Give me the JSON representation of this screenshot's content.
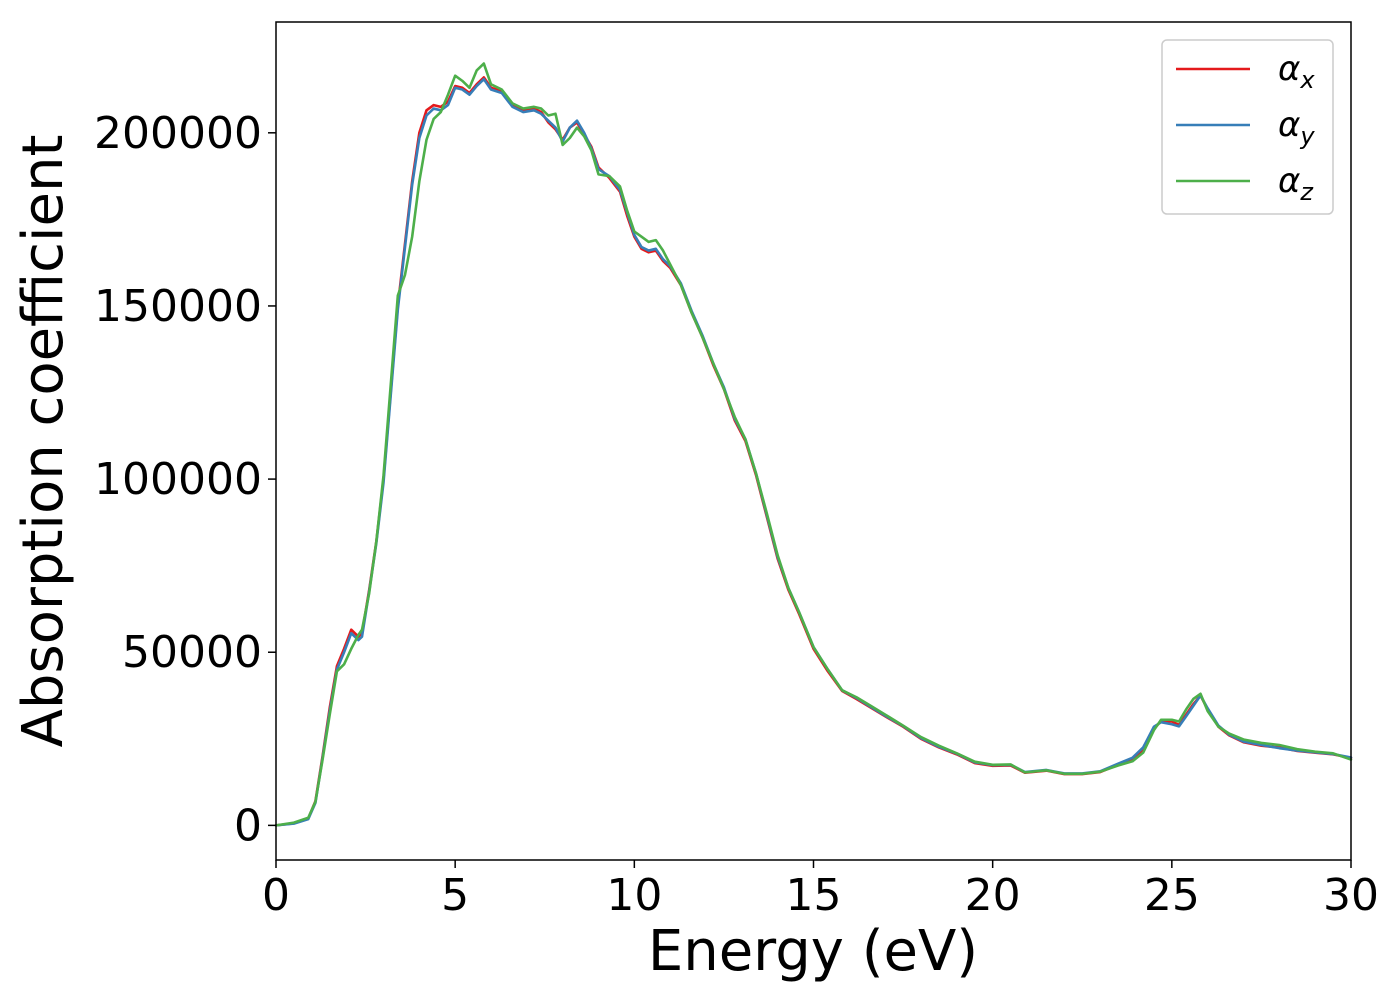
{
  "chart_data": {
    "type": "line",
    "title": "",
    "xlabel": "Energy (eV)",
    "ylabel": "Absorption coefficient",
    "xlim": [
      0,
      30
    ],
    "ylim": [
      -10000,
      232000
    ],
    "xticks": [
      0,
      5,
      10,
      15,
      20,
      25,
      30
    ],
    "xtick_labels": [
      "0",
      "5",
      "10",
      "15",
      "20",
      "25",
      "30"
    ],
    "yticks": [
      0,
      50000,
      100000,
      150000,
      200000
    ],
    "ytick_labels": [
      "0",
      "50000",
      "100000",
      "150000",
      "200000"
    ],
    "grid": false,
    "legend_position": "top-right",
    "series": [
      {
        "name": "αx",
        "name_base": "α",
        "name_sub": "x",
        "color": "#e41a1c",
        "x": [
          0,
          0.5,
          0.9,
          1.1,
          1.3,
          1.5,
          1.7,
          1.9,
          2.1,
          2.3,
          2.4,
          2.6,
          2.8,
          3.0,
          3.2,
          3.4,
          3.6,
          3.8,
          4.0,
          4.2,
          4.4,
          4.6,
          4.8,
          5.0,
          5.2,
          5.4,
          5.6,
          5.8,
          6.0,
          6.3,
          6.6,
          6.9,
          7.2,
          7.4,
          7.6,
          7.8,
          8.0,
          8.2,
          8.4,
          8.6,
          8.8,
          9.0,
          9.3,
          9.6,
          9.8,
          10.0,
          10.2,
          10.4,
          10.6,
          10.8,
          11.0,
          11.3,
          11.6,
          11.9,
          12.2,
          12.5,
          12.8,
          13.1,
          13.4,
          13.7,
          14.0,
          14.3,
          14.6,
          15.0,
          15.4,
          15.8,
          16.2,
          16.6,
          17.0,
          17.5,
          18.0,
          18.5,
          19.0,
          19.5,
          20.0,
          20.5,
          20.9,
          21.5,
          22.0,
          22.5,
          23.0,
          23.5,
          23.9,
          24.2,
          24.5,
          24.7,
          25.0,
          25.2,
          25.4,
          25.6,
          25.8,
          26.0,
          26.3,
          26.6,
          27.0,
          27.5,
          28.0,
          28.5,
          29.0,
          29.5,
          30.0
        ],
        "y": [
          0,
          600,
          2000,
          7000,
          20000,
          34000,
          46000,
          51000,
          56500,
          54500,
          55500,
          68000,
          82000,
          100000,
          125000,
          150000,
          168000,
          186000,
          200000,
          206500,
          208000,
          207500,
          209000,
          213500,
          213000,
          211500,
          214000,
          216000,
          213000,
          212000,
          208000,
          206500,
          207000,
          206000,
          203000,
          201000,
          198000,
          201500,
          203000,
          199500,
          196000,
          190000,
          187000,
          183000,
          176000,
          170000,
          166500,
          165500,
          166000,
          163000,
          161000,
          156000,
          148000,
          141000,
          133000,
          126000,
          117000,
          111000,
          101000,
          89000,
          77000,
          68000,
          61000,
          51000,
          44500,
          38800,
          36500,
          34000,
          31500,
          28500,
          25000,
          22500,
          20500,
          18000,
          17200,
          17300,
          15200,
          15800,
          14800,
          14800,
          15400,
          17500,
          19000,
          22000,
          28000,
          30000,
          30000,
          29000,
          32000,
          35000,
          37500,
          33500,
          28500,
          26000,
          24000,
          23000,
          22500,
          21500,
          21000,
          20500,
          19500
        ]
      },
      {
        "name": "αy",
        "name_base": "α",
        "name_sub": "y",
        "color": "#377eb8",
        "x": [
          0,
          0.5,
          0.9,
          1.1,
          1.3,
          1.5,
          1.7,
          1.9,
          2.1,
          2.3,
          2.4,
          2.6,
          2.8,
          3.0,
          3.2,
          3.4,
          3.6,
          3.8,
          4.0,
          4.2,
          4.4,
          4.6,
          4.8,
          5.0,
          5.2,
          5.4,
          5.6,
          5.8,
          6.0,
          6.3,
          6.6,
          6.9,
          7.2,
          7.4,
          7.6,
          7.8,
          8.0,
          8.2,
          8.4,
          8.6,
          8.8,
          9.0,
          9.3,
          9.6,
          9.8,
          10.0,
          10.2,
          10.4,
          10.6,
          10.8,
          11.0,
          11.3,
          11.6,
          11.9,
          12.2,
          12.5,
          12.8,
          13.1,
          13.4,
          13.7,
          14.0,
          14.3,
          14.6,
          15.0,
          15.4,
          15.8,
          16.2,
          16.6,
          17.0,
          17.5,
          18.0,
          18.5,
          19.0,
          19.5,
          20.0,
          20.5,
          20.9,
          21.5,
          22.0,
          22.5,
          23.0,
          23.5,
          23.9,
          24.2,
          24.5,
          24.7,
          25.0,
          25.2,
          25.4,
          25.6,
          25.8,
          26.0,
          26.3,
          26.6,
          27.0,
          27.5,
          28.0,
          28.5,
          29.0,
          29.5,
          30.0
        ],
        "y": [
          0,
          500,
          1800,
          6500,
          19500,
          33000,
          45000,
          50000,
          55500,
          53500,
          54500,
          67500,
          81500,
          99000,
          124000,
          149000,
          167000,
          185000,
          198500,
          205000,
          207000,
          206500,
          208000,
          213000,
          212500,
          211000,
          213500,
          215500,
          212500,
          211500,
          207500,
          206000,
          206500,
          205500,
          203500,
          201500,
          197500,
          201500,
          203500,
          200000,
          195500,
          189500,
          187500,
          183500,
          177000,
          170500,
          167000,
          166000,
          166500,
          163500,
          161500,
          156500,
          148500,
          141500,
          133500,
          126500,
          117500,
          111500,
          101500,
          89500,
          77500,
          68500,
          61500,
          51500,
          45000,
          39000,
          36800,
          34200,
          31700,
          28700,
          25200,
          22700,
          20700,
          18200,
          17400,
          17500,
          15400,
          16000,
          15000,
          15000,
          15600,
          17800,
          19500,
          22500,
          28500,
          29800,
          29200,
          28600,
          31500,
          34500,
          37500,
          33800,
          28800,
          26200,
          24200,
          23200,
          22300,
          21600,
          21100,
          20600,
          19600
        ]
      },
      {
        "name": "αz",
        "name_base": "α",
        "name_sub": "z",
        "color": "#4daf4a",
        "x": [
          0,
          0.5,
          0.9,
          1.1,
          1.3,
          1.5,
          1.7,
          1.9,
          2.1,
          2.3,
          2.4,
          2.6,
          2.8,
          3.0,
          3.2,
          3.4,
          3.6,
          3.8,
          4.0,
          4.2,
          4.4,
          4.6,
          4.8,
          5.0,
          5.2,
          5.4,
          5.6,
          5.8,
          6.0,
          6.3,
          6.6,
          6.9,
          7.2,
          7.4,
          7.6,
          7.8,
          8.0,
          8.2,
          8.4,
          8.6,
          8.8,
          9.0,
          9.3,
          9.6,
          9.8,
          10.0,
          10.2,
          10.4,
          10.6,
          10.8,
          11.0,
          11.3,
          11.6,
          11.9,
          12.2,
          12.5,
          12.8,
          13.1,
          13.4,
          13.7,
          14.0,
          14.3,
          14.6,
          15.0,
          15.4,
          15.8,
          16.2,
          16.6,
          17.0,
          17.5,
          18.0,
          18.5,
          19.0,
          19.5,
          20.0,
          20.5,
          20.9,
          21.5,
          22.0,
          22.5,
          23.0,
          23.5,
          23.9,
          24.2,
          24.5,
          24.7,
          25.0,
          25.2,
          25.4,
          25.6,
          25.8,
          26.0,
          26.3,
          26.6,
          27.0,
          27.5,
          28.0,
          28.5,
          29.0,
          29.5,
          30.0
        ],
        "y": [
          0,
          800,
          2200,
          6800,
          19000,
          32000,
          44500,
          46500,
          51000,
          55000,
          56500,
          67000,
          82000,
          101000,
          127000,
          153000,
          159000,
          170000,
          186000,
          198000,
          204000,
          206000,
          211000,
          216500,
          215000,
          213000,
          218000,
          220000,
          214000,
          212500,
          208500,
          207000,
          207500,
          207000,
          205000,
          205500,
          196500,
          198500,
          201500,
          199000,
          195000,
          188000,
          187500,
          184500,
          177500,
          171500,
          170000,
          168500,
          169000,
          166000,
          162000,
          156000,
          148000,
          141000,
          133500,
          126000,
          118000,
          111500,
          101500,
          90000,
          78000,
          68500,
          61500,
          51500,
          45000,
          39000,
          37000,
          34500,
          32000,
          28800,
          25500,
          23000,
          20800,
          18400,
          17500,
          17600,
          15300,
          15900,
          14900,
          14900,
          15500,
          17300,
          18500,
          21000,
          27500,
          30500,
          30500,
          30000,
          33500,
          36500,
          38000,
          33000,
          28500,
          26500,
          24800,
          23800,
          23200,
          22000,
          21300,
          20800,
          19000
        ]
      }
    ]
  }
}
